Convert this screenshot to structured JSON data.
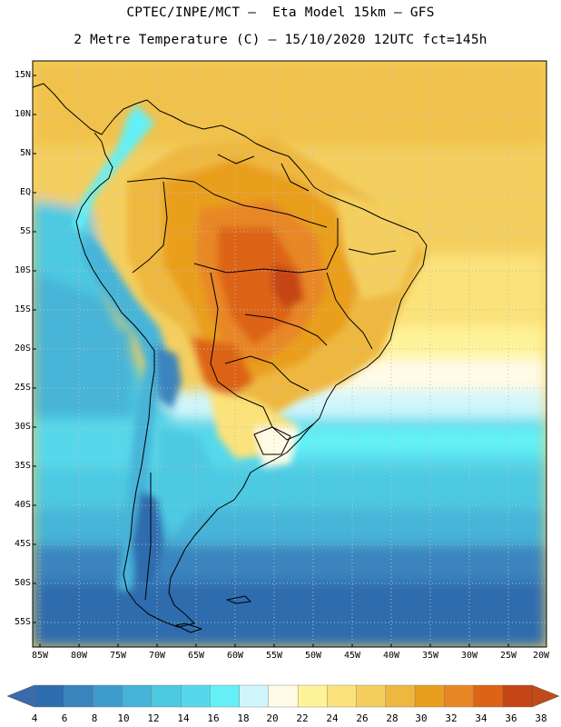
{
  "header": {
    "title_line1": "CPTEC/INPE/MCT –  Eta Model 15km – GFS",
    "title_line2": "2 Metre Temperature (C) – 15/10/2020 12UTC fct=145h"
  },
  "axes": {
    "lat_labels": [
      "15N",
      "10N",
      "5N",
      "EQ",
      "5S",
      "10S",
      "15S",
      "20S",
      "25S",
      "30S",
      "35S",
      "40S",
      "45S",
      "50S",
      "55S"
    ],
    "lon_labels": [
      "85W",
      "80W",
      "75W",
      "70W",
      "65W",
      "60W",
      "55W",
      "50W",
      "45W",
      "40W",
      "35W",
      "30W",
      "25W",
      "20W"
    ]
  },
  "colorbar": {
    "labels": [
      "4",
      "6",
      "8",
      "10",
      "12",
      "14",
      "16",
      "18",
      "20",
      "22",
      "24",
      "26",
      "28",
      "30",
      "32",
      "34",
      "36",
      "38"
    ],
    "colors": [
      "#2d6cae",
      "#3a84be",
      "#3e9ccc",
      "#46b4d8",
      "#4ec9e2",
      "#56d8ea",
      "#64f0f6",
      "#cff6fb",
      "#fffbe6",
      "#fff39a",
      "#fbe27a",
      "#f4cf5e",
      "#eeb840",
      "#e99f1e",
      "#e88726",
      "#dd6316",
      "#c64514"
    ],
    "under_color": "#3c69ac",
    "over_color": "#c24a1a"
  },
  "map": {
    "land_outline_color": "#000000",
    "grid_color": "#bfbfbf"
  }
}
